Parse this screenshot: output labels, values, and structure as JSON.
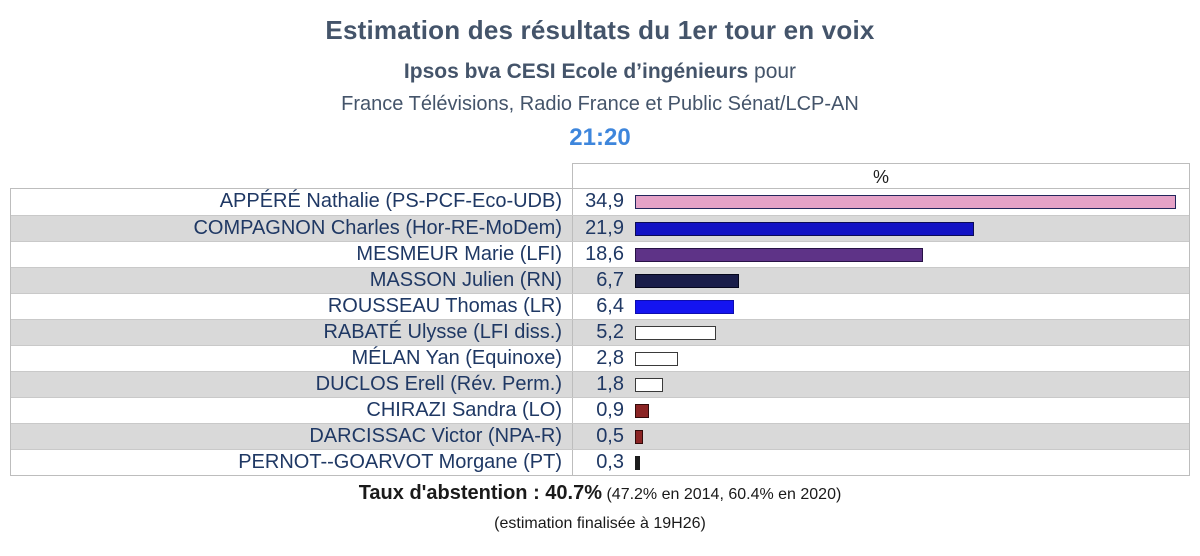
{
  "header": {
    "title": "Estimation des résultats du 1er tour en voix",
    "pollster_bold": "Ipsos bva CESI Ecole d’ingénieurs",
    "pollster_suffix": " pour",
    "media_line": "France Télévisions, Radio France et Public Sénat/LCP-AN",
    "time": "21:20"
  },
  "table": {
    "value_column_header": "%"
  },
  "chart_data": {
    "type": "bar",
    "orientation": "horizontal",
    "unit": "%",
    "xlim": [
      0,
      36
    ],
    "grid": false,
    "legend": "none",
    "title": "Estimation des résultats du 1er tour en voix",
    "categories": [
      "APPÉRÉ Nathalie (PS-PCF-Eco-UDB)",
      "COMPAGNON Charles (Hor-RE-MoDem)",
      "MESMEUR Marie (LFI)",
      "MASSON Julien (RN)",
      "ROUSSEAU Thomas (LR)",
      "RABATÉ Ulysse (LFI diss.)",
      "MÉLAN Yan (Equinoxe)",
      "DUCLOS Erell (Rév. Perm.)",
      "CHIRAZI Sandra (LO)",
      "DARCISSAC Victor (NPA-R)",
      "PERNOT--GOARVOT Morgane (PT)"
    ],
    "values": [
      34.9,
      21.9,
      18.6,
      6.7,
      6.4,
      5.2,
      2.8,
      1.8,
      0.9,
      0.5,
      0.3
    ],
    "value_labels": [
      "34,9",
      "21,9",
      "18,6",
      "6,7",
      "6,4",
      "5,2",
      "2,8",
      "1,8",
      "0,9",
      "0,5",
      "0,3"
    ],
    "bar_styles": [
      {
        "fill": "#E5A2C7",
        "border": "#23265C"
      },
      {
        "fill": "#1212C4",
        "border": "#0B0B56"
      },
      {
        "fill": "#5E3387",
        "border": "#271245"
      },
      {
        "fill": "#191D49",
        "border": "#05071C"
      },
      {
        "fill": "#1414F0",
        "border": "#0D0DAE"
      },
      {
        "fill": "#FFFFFF",
        "border": "#3A3A3A"
      },
      {
        "fill": "#FFFFFF",
        "border": "#3A3A3A"
      },
      {
        "fill": "#FFFFFF",
        "border": "#3A3A3A"
      },
      {
        "fill": "#8B2424",
        "border": "#330A0A"
      },
      {
        "fill": "#8B2424",
        "border": "#330A0A"
      },
      {
        "fill": "#1C1C1C",
        "border": "#1C1C1C"
      }
    ]
  },
  "colors": {
    "title_text": "#44546A",
    "time_text": "#3E86DC",
    "row_text": "#1F3864",
    "row_alt_bg": "#D9D9D9",
    "table_border": "#BDBDBD"
  },
  "footer": {
    "abstention_bold": "Taux d'abstention : 40.7%",
    "abstention_history": " (47.2% en 2014, 60.4% en 2020)",
    "note": "(estimation finalisée à 19H26)"
  }
}
